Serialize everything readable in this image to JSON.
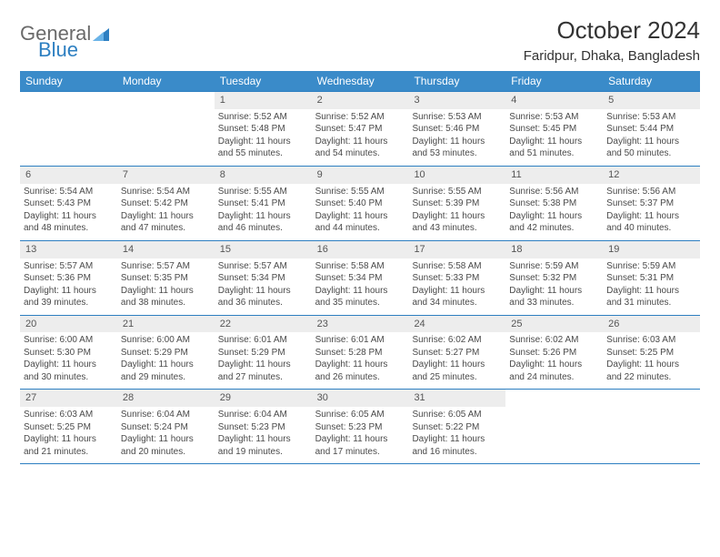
{
  "logo": {
    "part1": "General",
    "part2": "Blue"
  },
  "title": "October 2024",
  "location": "Faridpur, Dhaka, Bangladesh",
  "colors": {
    "header_bg": "#3a8bc9",
    "header_text": "#ffffff",
    "border": "#2d7fc1",
    "daynum_bg": "#ededed",
    "text": "#4a4a4a",
    "logo_gray": "#6a6a6a",
    "logo_blue": "#2d7fc1",
    "page_bg": "#ffffff"
  },
  "fonts": {
    "title_size": 26,
    "location_size": 15,
    "dow_size": 12,
    "daynum_size": 11,
    "body_size": 10
  },
  "dow": [
    "Sunday",
    "Monday",
    "Tuesday",
    "Wednesday",
    "Thursday",
    "Friday",
    "Saturday"
  ],
  "weeks": [
    [
      {
        "empty": true
      },
      {
        "empty": true
      },
      {
        "num": "1",
        "sunrise": "Sunrise: 5:52 AM",
        "sunset": "Sunset: 5:48 PM",
        "day1": "Daylight: 11 hours",
        "day2": "and 55 minutes."
      },
      {
        "num": "2",
        "sunrise": "Sunrise: 5:52 AM",
        "sunset": "Sunset: 5:47 PM",
        "day1": "Daylight: 11 hours",
        "day2": "and 54 minutes."
      },
      {
        "num": "3",
        "sunrise": "Sunrise: 5:53 AM",
        "sunset": "Sunset: 5:46 PM",
        "day1": "Daylight: 11 hours",
        "day2": "and 53 minutes."
      },
      {
        "num": "4",
        "sunrise": "Sunrise: 5:53 AM",
        "sunset": "Sunset: 5:45 PM",
        "day1": "Daylight: 11 hours",
        "day2": "and 51 minutes."
      },
      {
        "num": "5",
        "sunrise": "Sunrise: 5:53 AM",
        "sunset": "Sunset: 5:44 PM",
        "day1": "Daylight: 11 hours",
        "day2": "and 50 minutes."
      }
    ],
    [
      {
        "num": "6",
        "sunrise": "Sunrise: 5:54 AM",
        "sunset": "Sunset: 5:43 PM",
        "day1": "Daylight: 11 hours",
        "day2": "and 48 minutes."
      },
      {
        "num": "7",
        "sunrise": "Sunrise: 5:54 AM",
        "sunset": "Sunset: 5:42 PM",
        "day1": "Daylight: 11 hours",
        "day2": "and 47 minutes."
      },
      {
        "num": "8",
        "sunrise": "Sunrise: 5:55 AM",
        "sunset": "Sunset: 5:41 PM",
        "day1": "Daylight: 11 hours",
        "day2": "and 46 minutes."
      },
      {
        "num": "9",
        "sunrise": "Sunrise: 5:55 AM",
        "sunset": "Sunset: 5:40 PM",
        "day1": "Daylight: 11 hours",
        "day2": "and 44 minutes."
      },
      {
        "num": "10",
        "sunrise": "Sunrise: 5:55 AM",
        "sunset": "Sunset: 5:39 PM",
        "day1": "Daylight: 11 hours",
        "day2": "and 43 minutes."
      },
      {
        "num": "11",
        "sunrise": "Sunrise: 5:56 AM",
        "sunset": "Sunset: 5:38 PM",
        "day1": "Daylight: 11 hours",
        "day2": "and 42 minutes."
      },
      {
        "num": "12",
        "sunrise": "Sunrise: 5:56 AM",
        "sunset": "Sunset: 5:37 PM",
        "day1": "Daylight: 11 hours",
        "day2": "and 40 minutes."
      }
    ],
    [
      {
        "num": "13",
        "sunrise": "Sunrise: 5:57 AM",
        "sunset": "Sunset: 5:36 PM",
        "day1": "Daylight: 11 hours",
        "day2": "and 39 minutes."
      },
      {
        "num": "14",
        "sunrise": "Sunrise: 5:57 AM",
        "sunset": "Sunset: 5:35 PM",
        "day1": "Daylight: 11 hours",
        "day2": "and 38 minutes."
      },
      {
        "num": "15",
        "sunrise": "Sunrise: 5:57 AM",
        "sunset": "Sunset: 5:34 PM",
        "day1": "Daylight: 11 hours",
        "day2": "and 36 minutes."
      },
      {
        "num": "16",
        "sunrise": "Sunrise: 5:58 AM",
        "sunset": "Sunset: 5:34 PM",
        "day1": "Daylight: 11 hours",
        "day2": "and 35 minutes."
      },
      {
        "num": "17",
        "sunrise": "Sunrise: 5:58 AM",
        "sunset": "Sunset: 5:33 PM",
        "day1": "Daylight: 11 hours",
        "day2": "and 34 minutes."
      },
      {
        "num": "18",
        "sunrise": "Sunrise: 5:59 AM",
        "sunset": "Sunset: 5:32 PM",
        "day1": "Daylight: 11 hours",
        "day2": "and 33 minutes."
      },
      {
        "num": "19",
        "sunrise": "Sunrise: 5:59 AM",
        "sunset": "Sunset: 5:31 PM",
        "day1": "Daylight: 11 hours",
        "day2": "and 31 minutes."
      }
    ],
    [
      {
        "num": "20",
        "sunrise": "Sunrise: 6:00 AM",
        "sunset": "Sunset: 5:30 PM",
        "day1": "Daylight: 11 hours",
        "day2": "and 30 minutes."
      },
      {
        "num": "21",
        "sunrise": "Sunrise: 6:00 AM",
        "sunset": "Sunset: 5:29 PM",
        "day1": "Daylight: 11 hours",
        "day2": "and 29 minutes."
      },
      {
        "num": "22",
        "sunrise": "Sunrise: 6:01 AM",
        "sunset": "Sunset: 5:29 PM",
        "day1": "Daylight: 11 hours",
        "day2": "and 27 minutes."
      },
      {
        "num": "23",
        "sunrise": "Sunrise: 6:01 AM",
        "sunset": "Sunset: 5:28 PM",
        "day1": "Daylight: 11 hours",
        "day2": "and 26 minutes."
      },
      {
        "num": "24",
        "sunrise": "Sunrise: 6:02 AM",
        "sunset": "Sunset: 5:27 PM",
        "day1": "Daylight: 11 hours",
        "day2": "and 25 minutes."
      },
      {
        "num": "25",
        "sunrise": "Sunrise: 6:02 AM",
        "sunset": "Sunset: 5:26 PM",
        "day1": "Daylight: 11 hours",
        "day2": "and 24 minutes."
      },
      {
        "num": "26",
        "sunrise": "Sunrise: 6:03 AM",
        "sunset": "Sunset: 5:25 PM",
        "day1": "Daylight: 11 hours",
        "day2": "and 22 minutes."
      }
    ],
    [
      {
        "num": "27",
        "sunrise": "Sunrise: 6:03 AM",
        "sunset": "Sunset: 5:25 PM",
        "day1": "Daylight: 11 hours",
        "day2": "and 21 minutes."
      },
      {
        "num": "28",
        "sunrise": "Sunrise: 6:04 AM",
        "sunset": "Sunset: 5:24 PM",
        "day1": "Daylight: 11 hours",
        "day2": "and 20 minutes."
      },
      {
        "num": "29",
        "sunrise": "Sunrise: 6:04 AM",
        "sunset": "Sunset: 5:23 PM",
        "day1": "Daylight: 11 hours",
        "day2": "and 19 minutes."
      },
      {
        "num": "30",
        "sunrise": "Sunrise: 6:05 AM",
        "sunset": "Sunset: 5:23 PM",
        "day1": "Daylight: 11 hours",
        "day2": "and 17 minutes."
      },
      {
        "num": "31",
        "sunrise": "Sunrise: 6:05 AM",
        "sunset": "Sunset: 5:22 PM",
        "day1": "Daylight: 11 hours",
        "day2": "and 16 minutes."
      },
      {
        "empty": true
      },
      {
        "empty": true
      }
    ]
  ]
}
